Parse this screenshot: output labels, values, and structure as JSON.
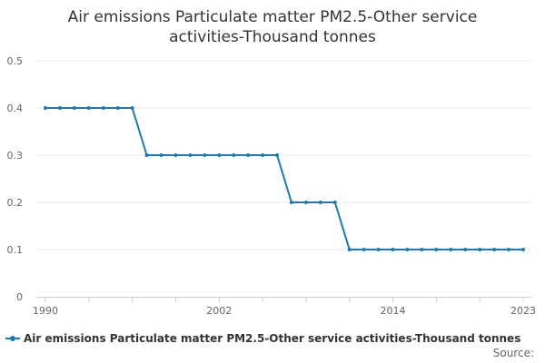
{
  "chart_data": {
    "type": "line",
    "title_lines": [
      "Air emissions Particulate matter PM2.5-Other service",
      "activities-Thousand tonnes"
    ],
    "xlabel": "",
    "ylabel": "",
    "xlim": [
      1990,
      2023
    ],
    "ylim": [
      0,
      0.5
    ],
    "x_tick_labels": [
      "1990",
      "2002",
      "2014",
      "2023"
    ],
    "y_tick_labels": [
      "0",
      "0.1",
      "0.2",
      "0.3",
      "0.4",
      "0.5"
    ],
    "grid": true,
    "legend_position": "bottom",
    "colors": {
      "series": "#1a7ab5",
      "grid": "#e6e6e6",
      "axis": "#cccccc"
    },
    "x": [
      1990,
      1991,
      1992,
      1993,
      1994,
      1995,
      1996,
      1997,
      1998,
      1999,
      2000,
      2001,
      2002,
      2003,
      2004,
      2005,
      2006,
      2007,
      2008,
      2009,
      2010,
      2011,
      2012,
      2013,
      2014,
      2015,
      2016,
      2017,
      2018,
      2019,
      2020,
      2021,
      2022,
      2023
    ],
    "series": [
      {
        "name": "Air emissions Particulate matter PM2.5-Other service activities-Thousand tonnes",
        "values": [
          0.4,
          0.4,
          0.4,
          0.4,
          0.4,
          0.4,
          0.4,
          0.3,
          0.3,
          0.3,
          0.3,
          0.3,
          0.3,
          0.3,
          0.3,
          0.3,
          0.3,
          0.2,
          0.2,
          0.2,
          0.2,
          0.1,
          0.1,
          0.1,
          0.1,
          0.1,
          0.1,
          0.1,
          0.1,
          0.1,
          0.1,
          0.1,
          0.1,
          0.1
        ]
      }
    ]
  },
  "source_label": "Source:"
}
